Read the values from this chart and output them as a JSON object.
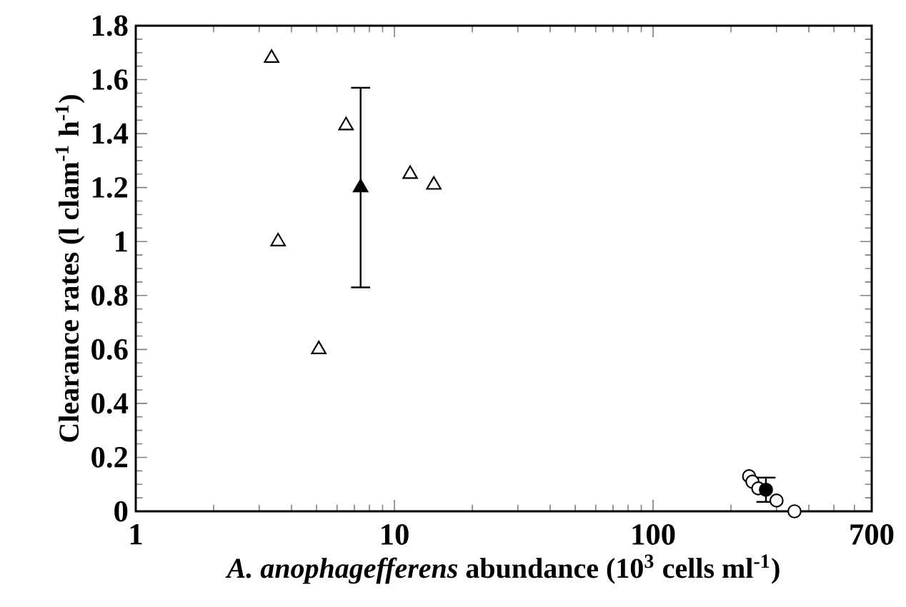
{
  "chart_data": {
    "type": "scatter",
    "xlabel": "*A. anophagefferens* abundance (10$^{3}$ cells ml$^{-1}$)",
    "ylabel": "Clearance rates (l clam$^{-1}$ h$^{-1}$)",
    "log": "x",
    "xlim": [
      1,
      700
    ],
    "xticks": [
      1,
      10,
      100,
      700
    ],
    "ylim": [
      0,
      1.8
    ],
    "yticks": [
      0,
      0.2,
      0.4,
      0.6,
      0.8,
      1,
      1.2,
      1.4,
      1.6,
      1.8
    ],
    "series": [
      {
        "marker": "triangle",
        "color": "#ffffff",
        "x": [
          3.35,
          6.5,
          11.5,
          14.2,
          3.55,
          5.1
        ],
        "values": [
          1.68,
          1.43,
          1.25,
          1.21,
          1.0,
          0.6
        ]
      },
      {
        "marker": "triangle",
        "color": "#000000",
        "x": [
          7.4
        ],
        "values": [
          1.2
        ],
        "errors": [
          0.37
        ]
      },
      {
        "marker": "circle",
        "color": "#ffffff",
        "x": [
          235,
          242,
          255,
          300,
          352
        ],
        "values": [
          0.13,
          0.11,
          0.085,
          0.04,
          0.0
        ]
      },
      {
        "marker": "circle",
        "color": "#000000",
        "x": [
          273
        ],
        "values": [
          0.08
        ],
        "errors": [
          0.045
        ]
      }
    ]
  }
}
